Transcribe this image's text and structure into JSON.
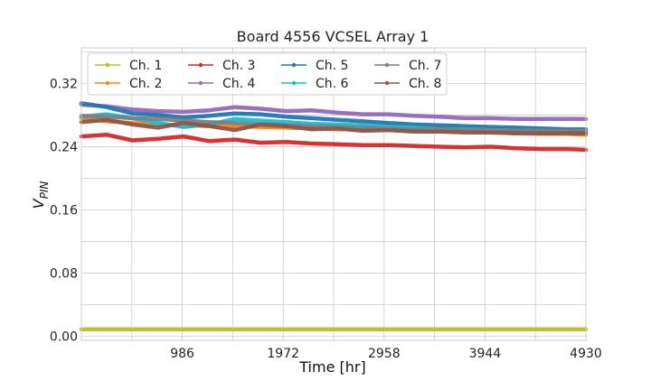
{
  "chart_data": {
    "type": "line",
    "title": "Board 4556 VCSEL Array 1",
    "xlabel": "Time [hr]",
    "ylabel": "V",
    "ylabel_subscript": "PIN",
    "xlim": [
      0,
      4930
    ],
    "ylim": [
      -0.005,
      0.365
    ],
    "x_ticks": [
      986,
      1972,
      2958,
      3944,
      4930
    ],
    "y_ticks": [
      0.0,
      0.08,
      0.16,
      0.24,
      0.32
    ],
    "y_tick_labels": [
      "0.00",
      "0.08",
      "0.16",
      "0.24",
      "0.32"
    ],
    "grid": true,
    "legend_position": "upper-left",
    "x": [
      0,
      250,
      500,
      750,
      1000,
      1250,
      1500,
      1750,
      2000,
      2250,
      2500,
      2750,
      3000,
      3250,
      3500,
      3750,
      4000,
      4250,
      4500,
      4750,
      4930
    ],
    "series": [
      {
        "name": "Ch. 1",
        "color": "#bcbd22",
        "values": [
          0.009,
          0.009,
          0.009,
          0.009,
          0.009,
          0.009,
          0.009,
          0.009,
          0.009,
          0.009,
          0.009,
          0.009,
          0.009,
          0.009,
          0.009,
          0.009,
          0.009,
          0.009,
          0.009,
          0.009,
          0.009
        ]
      },
      {
        "name": "Ch. 2",
        "color": "#ff7f0e",
        "values": [
          0.276,
          0.272,
          0.27,
          0.268,
          0.267,
          0.266,
          0.266,
          0.265,
          0.264,
          0.263,
          0.262,
          0.262,
          0.261,
          0.26,
          0.259,
          0.259,
          0.258,
          0.257,
          0.256,
          0.256,
          0.255
        ]
      },
      {
        "name": "Ch. 3",
        "color": "#d62728",
        "values": [
          0.253,
          0.255,
          0.248,
          0.25,
          0.253,
          0.247,
          0.249,
          0.245,
          0.246,
          0.244,
          0.243,
          0.242,
          0.242,
          0.241,
          0.24,
          0.239,
          0.24,
          0.238,
          0.237,
          0.237,
          0.236
        ]
      },
      {
        "name": "Ch. 4",
        "color": "#9467bd",
        "values": [
          0.293,
          0.291,
          0.287,
          0.285,
          0.284,
          0.286,
          0.29,
          0.288,
          0.285,
          0.286,
          0.283,
          0.281,
          0.281,
          0.279,
          0.278,
          0.276,
          0.276,
          0.275,
          0.275,
          0.275,
          0.275
        ]
      },
      {
        "name": "Ch. 5",
        "color": "#1f77b4",
        "values": [
          0.295,
          0.29,
          0.282,
          0.28,
          0.277,
          0.279,
          0.282,
          0.281,
          0.278,
          0.276,
          0.274,
          0.272,
          0.27,
          0.268,
          0.267,
          0.266,
          0.265,
          0.264,
          0.263,
          0.262,
          0.262
        ]
      },
      {
        "name": "Ch. 6",
        "color": "#17becf",
        "values": [
          0.278,
          0.281,
          0.276,
          0.27,
          0.265,
          0.268,
          0.275,
          0.273,
          0.271,
          0.269,
          0.268,
          0.267,
          0.265,
          0.264,
          0.262,
          0.262,
          0.261,
          0.26,
          0.26,
          0.259,
          0.259
        ]
      },
      {
        "name": "Ch. 7",
        "color": "#7f7f7f",
        "values": [
          0.279,
          0.278,
          0.276,
          0.275,
          0.273,
          0.271,
          0.27,
          0.268,
          0.267,
          0.266,
          0.265,
          0.264,
          0.263,
          0.262,
          0.262,
          0.261,
          0.261,
          0.26,
          0.26,
          0.26,
          0.26
        ]
      },
      {
        "name": "Ch. 8",
        "color": "#8c564b",
        "values": [
          0.271,
          0.274,
          0.268,
          0.264,
          0.27,
          0.266,
          0.261,
          0.268,
          0.266,
          0.262,
          0.263,
          0.26,
          0.261,
          0.259,
          0.259,
          0.258,
          0.258,
          0.257,
          0.257,
          0.257,
          0.257
        ]
      }
    ]
  }
}
